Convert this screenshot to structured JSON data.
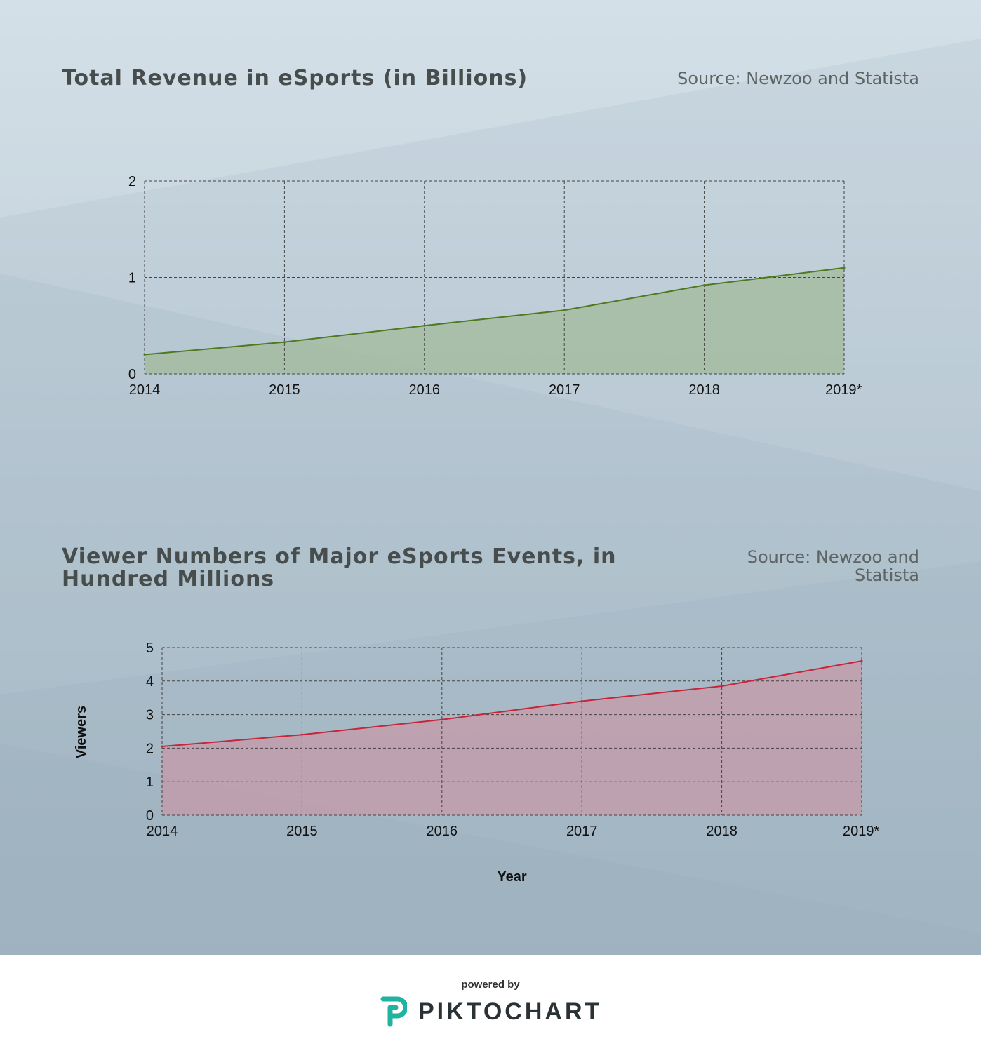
{
  "colors": {
    "bg_top": "#d4e0e8",
    "bg_bottom": "#a9bcc7",
    "revenue_line": "#4e7a1f",
    "revenue_fill": "#a3b99a",
    "viewers_line": "#c8253a",
    "viewers_fill": "#c59aa8",
    "brand_accent": "#1fb3a0"
  },
  "charts": {
    "revenue": {
      "title": "Total Revenue in eSports (in Billions)",
      "source": "Source:  Newzoo and Statista"
    },
    "viewers": {
      "title_line1": "Viewer Numbers of Major eSports Events, in",
      "title_line2": "Hundred Millions",
      "source_line1": "Source: Newzoo and",
      "source_line2": "Statista"
    }
  },
  "chart_data": [
    {
      "type": "area",
      "title": "Total Revenue in eSports (in Billions)",
      "source": "Source:  Newzoo and Statista",
      "categories": [
        "2014",
        "2015",
        "2016",
        "2017",
        "2018",
        "2019*"
      ],
      "values": [
        0.2,
        0.33,
        0.5,
        0.66,
        0.92,
        1.1
      ],
      "xlabel": "",
      "ylabel": "",
      "yticks": [
        "0",
        "1",
        "2"
      ],
      "ylim": [
        0,
        2
      ],
      "grid": true
    },
    {
      "type": "area",
      "title": "Viewer Numbers of Major eSports Events, in Hundred Millions",
      "source": "Source: Newzoo and Statista",
      "categories": [
        "2014",
        "2015",
        "2016",
        "2017",
        "2018",
        "2019*"
      ],
      "values": [
        2.05,
        2.4,
        2.85,
        3.4,
        3.85,
        4.6
      ],
      "xlabel": "Year",
      "ylabel": "Viewers",
      "yticks": [
        "0",
        "1",
        "2",
        "3",
        "4",
        "5"
      ],
      "ylim": [
        0,
        5
      ],
      "grid": true
    }
  ],
  "footer": {
    "powered_by": "powered by",
    "brand": "PIKTOCHART"
  }
}
